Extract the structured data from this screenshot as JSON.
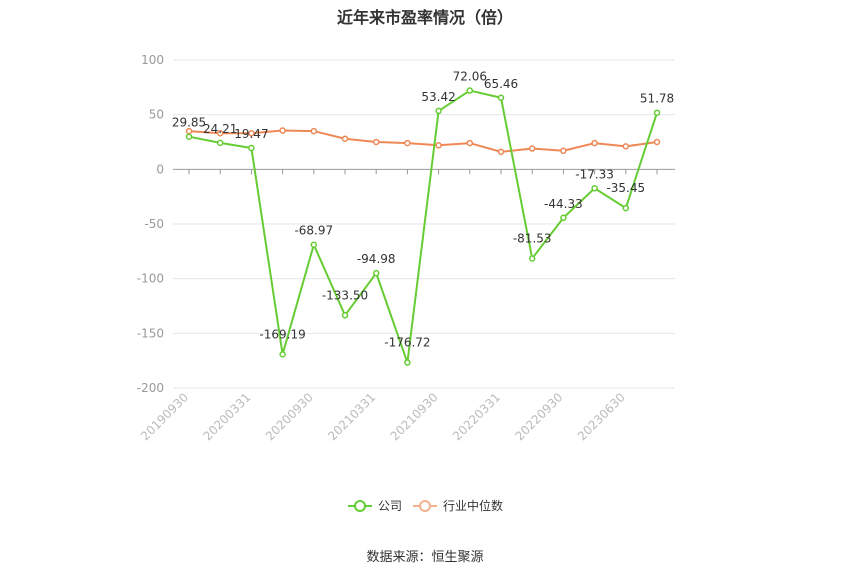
{
  "title": "近年来市盈率情况（倍）",
  "source": "数据来源：恒生聚源",
  "chart_data": {
    "type": "line",
    "title": "近年来市盈率情况（倍）",
    "xlabel": "",
    "ylabel": "",
    "ylim": [
      -200,
      100
    ],
    "yticks": [
      100,
      50,
      0,
      -50,
      -100,
      -150,
      -200
    ],
    "grid": true,
    "legend_position": "bottom",
    "x_tick_labels": [
      "20190930",
      "20200331",
      "20200930",
      "20210331",
      "20210930",
      "20220331",
      "20220930",
      "20230630"
    ],
    "series": [
      {
        "name": "公司",
        "color": "#66cc33",
        "values": [
          29.85,
          24.21,
          19.47,
          -169.19,
          -68.97,
          -133.5,
          -94.98,
          -176.72,
          53.42,
          72.06,
          65.46,
          -81.53,
          -44.33,
          -17.33,
          -35.45,
          51.78
        ],
        "labels": [
          "29.85",
          "24.21",
          "19.47",
          "-169.19",
          "-68.97",
          "-133.50",
          "-94.98",
          "-176.72",
          "53.42",
          "72.06",
          "65.46",
          "-81.53",
          "-44.33",
          "-17.33",
          "-35.45",
          "51.78"
        ]
      },
      {
        "name": "行业中位数",
        "color": "#ee8855",
        "values": [
          35,
          33,
          33,
          35.5,
          35,
          28,
          25,
          24,
          22,
          24,
          16,
          19,
          17,
          24,
          21,
          25
        ]
      }
    ]
  },
  "legend": {
    "company": "公司",
    "industry": "行业中位数"
  }
}
